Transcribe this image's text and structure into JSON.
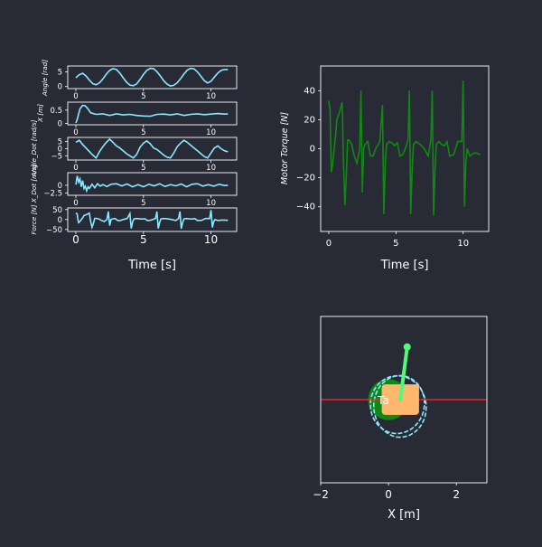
{
  "colors": {
    "background": "#282a36",
    "frame": "#ffffff",
    "cyan": "#8be9fd",
    "torque": "#118811",
    "track": "#ee2222",
    "cart": "#ffb86c",
    "wheel": "#118811",
    "pole": "#50fa7b"
  },
  "chart_data": [
    {
      "type": "line",
      "name": "angle",
      "ylabel": "Angle [rad]",
      "x": [
        0,
        0.25,
        0.5,
        0.75,
        1.0,
        1.25,
        1.5,
        1.75,
        2.0,
        2.25,
        2.5,
        2.75,
        3.0,
        3.25,
        3.5,
        3.75,
        4.0,
        4.25,
        4.5,
        4.75,
        5.0,
        5.25,
        5.5,
        5.75,
        6.0,
        6.25,
        6.5,
        6.75,
        7.0,
        7.25,
        7.5,
        7.75,
        8.0,
        8.25,
        8.5,
        8.75,
        9.0,
        9.25,
        9.5,
        9.75,
        10.0,
        10.25,
        10.5,
        10.75,
        11.0,
        11.25
      ],
      "y": [
        3.0,
        4.0,
        4.5,
        3.6,
        2.2,
        1.0,
        0.6,
        1.3,
        2.6,
        4.2,
        5.5,
        6.1,
        5.8,
        4.6,
        3.0,
        1.5,
        0.5,
        0.3,
        0.9,
        2.4,
        4.1,
        5.5,
        6.2,
        6.1,
        5.1,
        3.6,
        2.0,
        0.8,
        0.2,
        0.4,
        1.3,
        2.7,
        4.3,
        5.6,
        6.2,
        6.0,
        5.0,
        3.5,
        2.0,
        1.2,
        1.8,
        3.2,
        4.6,
        5.5,
        5.8,
        5.8
      ],
      "xlim": [
        -0.6,
        11.9
      ],
      "ylim": [
        -0.7,
        7.0
      ],
      "yticks": [
        0,
        5
      ],
      "xticks": [
        0,
        5,
        10
      ]
    },
    {
      "type": "line",
      "name": "cart-position",
      "ylabel": "X [m]",
      "x": [
        0,
        0.1,
        0.3,
        0.5,
        0.7,
        0.9,
        1.1,
        1.5,
        2.0,
        2.5,
        3.0,
        3.5,
        4.0,
        4.5,
        5.0,
        5.5,
        6.0,
        6.5,
        7.0,
        7.5,
        8.0,
        8.5,
        9.0,
        9.5,
        10.0,
        10.5,
        11.0,
        11.25
      ],
      "y": [
        0.02,
        0.15,
        0.55,
        0.68,
        0.66,
        0.55,
        0.4,
        0.34,
        0.36,
        0.3,
        0.36,
        0.32,
        0.34,
        0.3,
        0.28,
        0.27,
        0.34,
        0.35,
        0.32,
        0.36,
        0.3,
        0.34,
        0.36,
        0.33,
        0.35,
        0.37,
        0.35,
        0.36
      ],
      "xlim": [
        -0.6,
        11.9
      ],
      "ylim": [
        -0.05,
        0.8
      ],
      "yticks": [
        0.0,
        0.5
      ],
      "xticks": [
        0,
        5,
        10
      ]
    },
    {
      "type": "line",
      "name": "angle-dot",
      "ylabel": "Angle_Dot [rad/s]",
      "x": [
        0,
        0.25,
        0.5,
        0.75,
        1.0,
        1.25,
        1.5,
        1.75,
        2.0,
        2.25,
        2.5,
        2.75,
        3.0,
        3.25,
        3.5,
        3.75,
        4.0,
        4.25,
        4.5,
        4.75,
        5.0,
        5.25,
        5.5,
        5.75,
        6.0,
        6.25,
        6.5,
        6.75,
        7.0,
        7.25,
        7.5,
        7.75,
        8.0,
        8.25,
        8.5,
        8.75,
        9.0,
        9.25,
        9.5,
        9.75,
        10.0,
        10.25,
        10.5,
        10.75,
        11.0,
        11.25
      ],
      "y": [
        4.5,
        6.0,
        3.0,
        0.5,
        -2.0,
        -4.5,
        -6.5,
        -2.0,
        1.5,
        4.5,
        6.8,
        4.5,
        2.0,
        0.5,
        -1.5,
        -3.5,
        -5.0,
        -6.5,
        -4.0,
        1.0,
        4.0,
        5.5,
        3.5,
        0.5,
        -0.5,
        -2.5,
        -4.5,
        -6.0,
        -6.5,
        -3.0,
        1.5,
        4.0,
        6.0,
        4.5,
        2.5,
        0.5,
        -1.5,
        -3.5,
        -5.5,
        -6.5,
        -3.0,
        0.5,
        2.0,
        0.0,
        -1.5,
        -2.2
      ],
      "xlim": [
        -0.6,
        11.9
      ],
      "ylim": [
        -8.0,
        8.0
      ],
      "yticks": [
        -5,
        0,
        5
      ],
      "xticks": [
        0,
        5,
        10
      ]
    },
    {
      "type": "line",
      "name": "x-dot",
      "ylabel": "X_Dot [m/s]",
      "x": [
        0,
        0.1,
        0.2,
        0.3,
        0.4,
        0.5,
        0.6,
        0.7,
        0.8,
        0.9,
        1.0,
        1.2,
        1.4,
        1.6,
        1.8,
        2.0,
        2.3,
        2.6,
        3.0,
        3.4,
        3.8,
        4.2,
        4.6,
        5.0,
        5.4,
        5.8,
        6.2,
        6.6,
        7.0,
        7.4,
        7.8,
        8.2,
        8.6,
        9.0,
        9.4,
        9.8,
        10.2,
        10.6,
        11.0,
        11.25
      ],
      "y": [
        0.2,
        3.0,
        1.0,
        2.0,
        -0.5,
        1.5,
        -1.0,
        -0.3,
        -1.8,
        -0.5,
        -1.0,
        0.3,
        -0.8,
        0.5,
        -0.3,
        0.2,
        -0.4,
        0.3,
        0.5,
        -0.2,
        0.4,
        -0.5,
        0.2,
        -0.5,
        0.3,
        -0.2,
        0.5,
        -0.4,
        0.2,
        -0.2,
        0.4,
        -0.5,
        0.3,
        0.5,
        -0.3,
        0.2,
        -0.3,
        0.3,
        -0.1,
        0.0
      ],
      "xlim": [
        -0.6,
        11.9
      ],
      "ylim": [
        -3.2,
        4.0
      ],
      "yticks": [
        -2.5,
        0.0
      ],
      "xticks": [
        0,
        5,
        10
      ]
    },
    {
      "type": "line",
      "name": "force",
      "ylabel": "Force [N]",
      "xlabel": "Time [s]",
      "x": [
        0,
        0.1,
        0.15,
        0.2,
        0.3,
        0.4,
        0.5,
        0.6,
        0.8,
        1.0,
        1.1,
        1.2,
        1.3,
        1.4,
        1.5,
        1.7,
        1.9,
        2.1,
        2.3,
        2.4,
        2.5,
        2.6,
        2.7,
        2.9,
        3.1,
        3.3,
        3.5,
        3.8,
        4.0,
        4.1,
        4.2,
        4.3,
        4.5,
        4.7,
        4.9,
        5.1,
        5.3,
        5.5,
        5.7,
        5.9,
        6.0,
        6.1,
        6.2,
        6.3,
        6.5,
        6.8,
        7.1,
        7.4,
        7.6,
        7.7,
        7.8,
        7.9,
        8.0,
        8.2,
        8.4,
        8.6,
        8.8,
        9.0,
        9.3,
        9.6,
        9.9,
        10.0,
        10.1,
        10.2,
        10.3,
        10.5,
        10.8,
        11.0,
        11.25
      ],
      "y": [
        33,
        27,
        0,
        -16,
        -10,
        0,
        8,
        20,
        25,
        32,
        -10,
        -39,
        -20,
        6,
        6,
        3,
        -5,
        -10,
        0,
        40,
        -30,
        0,
        3,
        5,
        -5,
        -5,
        0,
        5,
        30,
        -45,
        -12,
        3,
        5,
        4,
        2,
        4,
        -5,
        -4,
        0,
        6,
        40,
        -45,
        -15,
        3,
        5,
        3,
        0,
        -5,
        6,
        40,
        -46,
        -15,
        3,
        5,
        3,
        2,
        5,
        -5,
        -4,
        5,
        5,
        47,
        -40,
        -10,
        0,
        -5,
        -3,
        -3,
        -4
      ],
      "xlim": [
        -0.6,
        11.9
      ],
      "ylim": [
        -60,
        58
      ],
      "yticks": [
        -50,
        0,
        50
      ],
      "xticks": [
        0,
        5,
        10
      ]
    },
    {
      "type": "line",
      "name": "motor-torque",
      "ylabel": "Motor Torque [N]",
      "xlabel": "Time [s]",
      "x": [
        0,
        0.1,
        0.15,
        0.2,
        0.3,
        0.4,
        0.5,
        0.6,
        0.8,
        1.0,
        1.1,
        1.2,
        1.3,
        1.4,
        1.5,
        1.7,
        1.9,
        2.1,
        2.3,
        2.4,
        2.5,
        2.6,
        2.7,
        2.9,
        3.1,
        3.3,
        3.5,
        3.8,
        4.0,
        4.1,
        4.2,
        4.3,
        4.5,
        4.7,
        4.9,
        5.1,
        5.3,
        5.5,
        5.7,
        5.9,
        6.0,
        6.1,
        6.2,
        6.3,
        6.5,
        6.8,
        7.1,
        7.4,
        7.6,
        7.7,
        7.8,
        7.9,
        8.0,
        8.2,
        8.4,
        8.6,
        8.8,
        9.0,
        9.3,
        9.6,
        9.9,
        10.0,
        10.1,
        10.2,
        10.3,
        10.5,
        10.8,
        11.0,
        11.25
      ],
      "y": [
        33,
        27,
        0,
        -16,
        -10,
        0,
        8,
        20,
        25,
        32,
        -10,
        -39,
        -20,
        6,
        6,
        3,
        -5,
        -10,
        0,
        40,
        -30,
        0,
        3,
        5,
        -5,
        -5,
        0,
        5,
        30,
        -45,
        -12,
        3,
        5,
        4,
        2,
        4,
        -5,
        -4,
        0,
        6,
        40,
        -45,
        -15,
        3,
        5,
        3,
        0,
        -5,
        6,
        40,
        -46,
        -15,
        3,
        5,
        3,
        2,
        5,
        -5,
        -4,
        5,
        5,
        47,
        -40,
        -10,
        0,
        -5,
        -3,
        -3,
        -4
      ],
      "xlim": [
        -0.6,
        11.9
      ],
      "ylim": [
        -57,
        57
      ],
      "yticks": [
        -40,
        -20,
        0,
        20,
        40
      ],
      "xticks": [
        0,
        5,
        10
      ]
    },
    {
      "type": "scatter",
      "name": "cart-animation",
      "xlabel": "X [m]",
      "xlim": [
        -2.0,
        2.9
      ],
      "ylim": [
        -1.5,
        1.5
      ],
      "xticks": [
        -2,
        0,
        2
      ],
      "track_y": 0.0,
      "cart": {
        "x": 0.35,
        "y": 0.0,
        "width": 1.1,
        "height": 0.55
      },
      "wheel": {
        "x": 0.0,
        "y": 0.0,
        "r": 0.6
      },
      "pole": {
        "x0": 0.35,
        "y0": 0.0,
        "x1": 0.55,
        "y1": 0.95
      },
      "cart_text": "Ta",
      "trail": {
        "cx": 0.3,
        "cy": 0.02,
        "rx": 0.85,
        "ry": 0.58,
        "loops": 2
      }
    }
  ]
}
